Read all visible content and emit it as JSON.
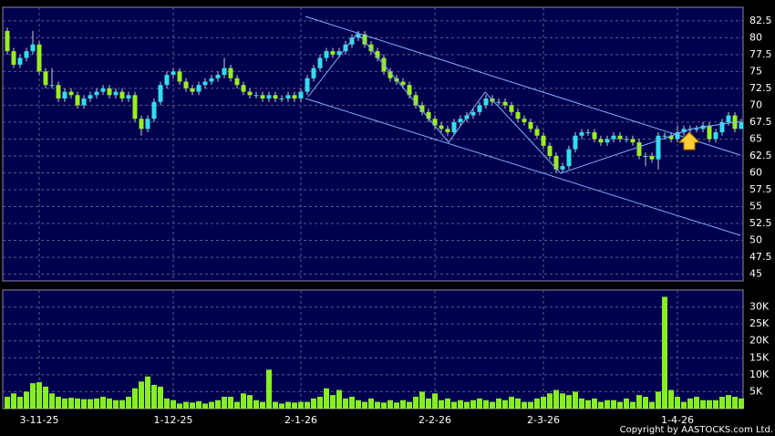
{
  "chart_data": {
    "type": "candlestick",
    "up_color": "#33ddee",
    "down_color": "#99ee22",
    "grid": true,
    "categories": [
      null,
      null,
      null,
      null,
      null,
      "3-11-25",
      null,
      null,
      null,
      null,
      null,
      null,
      null,
      null,
      null,
      null,
      null,
      null,
      null,
      null,
      null,
      null,
      null,
      null,
      null,
      null,
      "1-12-25",
      null,
      null,
      null,
      null,
      null,
      null,
      null,
      null,
      null,
      null,
      null,
      null,
      null,
      null,
      null,
      null,
      null,
      null,
      null,
      "2-1-26",
      null,
      null,
      null,
      null,
      null,
      null,
      null,
      null,
      null,
      null,
      null,
      null,
      null,
      null,
      null,
      null,
      null,
      null,
      null,
      null,
      "2-2-26",
      null,
      null,
      null,
      null,
      null,
      null,
      null,
      null,
      null,
      null,
      null,
      null,
      null,
      null,
      null,
      null,
      "2-3-26",
      null,
      null,
      null,
      null,
      null,
      null,
      null,
      null,
      null,
      null,
      null,
      null,
      null,
      null,
      null,
      null,
      null,
      null,
      null,
      null,
      "1-4-26",
      null,
      null,
      null,
      null,
      null,
      null,
      null,
      null,
      null,
      null
    ],
    "open": [
      81,
      78,
      76,
      77,
      78,
      79,
      75,
      73,
      73,
      71,
      72,
      71.5,
      70,
      71,
      71.5,
      72,
      72.5,
      71.5,
      72,
      71,
      71.5,
      68,
      66.5,
      68,
      70.5,
      73,
      74.5,
      75,
      73.5,
      72.5,
      72,
      73,
      73.5,
      74,
      74.5,
      75.5,
      74,
      73,
      72,
      71.5,
      71.5,
      71,
      71.5,
      71,
      71,
      71.5,
      71,
      72,
      74,
      75.5,
      77,
      78,
      77.5,
      78,
      79,
      80,
      80.5,
      79,
      78,
      77,
      75,
      74,
      73.5,
      73,
      71.5,
      70,
      69,
      68,
      67,
      66.5,
      66,
      67.5,
      68,
      68.5,
      69,
      70,
      71,
      70.5,
      70.5,
      70,
      69,
      68,
      67.5,
      66.5,
      65.5,
      64,
      62.5,
      60.5,
      61,
      63.5,
      65.5,
      66,
      66,
      65,
      64.5,
      65,
      65.5,
      65,
      65,
      64.5,
      62.5,
      62.5,
      62,
      65.5,
      65.5,
      65,
      66,
      66.5,
      66.5,
      66.5,
      67,
      65,
      66,
      67.5,
      68.5,
      66.5
    ],
    "high": [
      81.5,
      78.5,
      77.5,
      78.5,
      81,
      79.5,
      75.5,
      75.5,
      73.5,
      72.5,
      72.5,
      72,
      71.5,
      72,
      72.5,
      73,
      73,
      72.5,
      72.5,
      72,
      72,
      68.5,
      68.5,
      71,
      73.5,
      75,
      75.5,
      75.5,
      74,
      73,
      73.5,
      74,
      74.5,
      75,
      77,
      76,
      74.5,
      73.5,
      72.5,
      72,
      72,
      72,
      72,
      71.5,
      72,
      72,
      72.5,
      74.5,
      76,
      77.5,
      78.5,
      78.5,
      78.5,
      79.5,
      80.5,
      81,
      81,
      79.5,
      78.5,
      77.5,
      75.5,
      74.5,
      74,
      73.5,
      72,
      70.5,
      69.5,
      68.5,
      67.5,
      67,
      68,
      68.5,
      69,
      69.5,
      70.5,
      71.5,
      71.5,
      71,
      71,
      70.5,
      69.5,
      68.5,
      68,
      67,
      66,
      64.5,
      63,
      61.5,
      64,
      66,
      66.5,
      66.5,
      66.5,
      65.5,
      65.5,
      66,
      66,
      65.5,
      65.5,
      65,
      63,
      63,
      66,
      66,
      66,
      67,
      67,
      67,
      67,
      67.5,
      67.5,
      66.5,
      68,
      69,
      69,
      68
    ],
    "low": [
      77.5,
      75.5,
      75.5,
      76.5,
      77.5,
      74.5,
      72.5,
      72.5,
      70.5,
      70.5,
      71,
      69.5,
      69.5,
      70.5,
      71,
      71.5,
      71,
      71,
      70.5,
      70.5,
      67.5,
      65.5,
      66,
      67.5,
      70,
      72.5,
      74,
      73,
      72,
      71.5,
      71.5,
      72.5,
      73,
      73.5,
      74,
      73.5,
      72.5,
      71.5,
      71,
      71,
      70.5,
      70.5,
      70.5,
      70.5,
      70.5,
      70.5,
      70.5,
      71.5,
      73.5,
      75,
      76.5,
      77,
      77,
      77.5,
      78.5,
      79.5,
      78.5,
      77.5,
      76.5,
      74.5,
      73.5,
      73,
      72.5,
      71,
      69.5,
      68.5,
      67.5,
      66.5,
      66,
      65.5,
      65.5,
      67,
      67.5,
      68,
      68.5,
      69.5,
      70,
      70,
      69.5,
      68.5,
      67.5,
      67,
      66,
      65,
      63.5,
      62,
      60,
      60,
      60.5,
      63,
      65,
      65.5,
      64.5,
      64,
      64,
      64.5,
      64.5,
      64.5,
      64,
      62,
      61,
      61.5,
      60.5,
      65,
      64.5,
      64.5,
      65.5,
      66,
      66,
      66,
      64.5,
      64.5,
      65.5,
      67,
      66,
      66.5
    ],
    "close": [
      78,
      76,
      77,
      78,
      79,
      75,
      73,
      73,
      71,
      72,
      71.5,
      70,
      71,
      71.5,
      72,
      72.5,
      71.5,
      72,
      71,
      71.5,
      68,
      66.5,
      68,
      70.5,
      73,
      74.5,
      75,
      73.5,
      72.5,
      72,
      73,
      73.5,
      74,
      74.5,
      75.5,
      74,
      73,
      72,
      71.5,
      71.5,
      71,
      71.5,
      71,
      71,
      71.5,
      71,
      72,
      74,
      75.5,
      77,
      78,
      77.5,
      78,
      79,
      80,
      80.5,
      79,
      78,
      77,
      75,
      74,
      73.5,
      73,
      71.5,
      70,
      69,
      68,
      67,
      66.5,
      66,
      67.5,
      68,
      68.5,
      69,
      70,
      71,
      70.5,
      70.5,
      70,
      69,
      68,
      67.5,
      66.5,
      65.5,
      64,
      62.5,
      60.5,
      61,
      63.5,
      65.5,
      66,
      66,
      65,
      64.5,
      65,
      65.5,
      65,
      65,
      64.5,
      62.5,
      62.5,
      62,
      65.5,
      65.5,
      65,
      66,
      66.5,
      66.5,
      66.5,
      67,
      65,
      66,
      67.5,
      68.5,
      66.5,
      67.5
    ],
    "ylim": [
      44,
      84.5
    ],
    "yticks": [
      45,
      47.5,
      50,
      52.5,
      55,
      57.5,
      60,
      62.5,
      65,
      67.5,
      70,
      72.5,
      75,
      77.5,
      80,
      82.5
    ],
    "volume": {
      "color": "#88ee22",
      "values": [
        3500,
        4500,
        3500,
        5000,
        7500,
        7800,
        6500,
        4500,
        3500,
        3000,
        3200,
        3000,
        2800,
        2800,
        3000,
        3500,
        3000,
        2500,
        2500,
        3500,
        6000,
        8000,
        9500,
        7000,
        6500,
        3000,
        2500,
        1500,
        2000,
        1800,
        2200,
        1500,
        2000,
        2500,
        3500,
        3500,
        2000,
        4500,
        4000,
        2500,
        2000,
        11500,
        2000,
        1500,
        2000,
        1800,
        2000,
        2000,
        3000,
        3500,
        6000,
        4000,
        5500,
        3000,
        3500,
        2500,
        2000,
        3000,
        2000,
        1800,
        2500,
        1800,
        2500,
        2000,
        3500,
        5000,
        3000,
        4500,
        2500,
        3000,
        2000,
        2500,
        2000,
        2500,
        3000,
        2500,
        2000,
        3000,
        2500,
        3500,
        3000,
        2000,
        2000,
        3000,
        3500,
        4500,
        5500,
        4500,
        4000,
        5000,
        3000,
        2500,
        3000,
        2000,
        2500,
        2500,
        2000,
        3000,
        2000,
        4000,
        3500,
        2000,
        5000,
        33000,
        5500,
        3500,
        2000,
        3000,
        3500,
        2500,
        2500,
        2500,
        3500,
        4000,
        3500,
        3000
      ],
      "ylim": [
        0,
        35000
      ],
      "yticks": [
        {
          "value": 5000,
          "label": "5K"
        },
        {
          "value": 10000,
          "label": "10K"
        },
        {
          "value": 15000,
          "label": "15K"
        },
        {
          "value": 20000,
          "label": "20K"
        },
        {
          "value": 25000,
          "label": "25K"
        },
        {
          "value": 30000,
          "label": "30K"
        }
      ]
    },
    "copyright": "Copyright by AASTOCKS.com Ltd."
  }
}
